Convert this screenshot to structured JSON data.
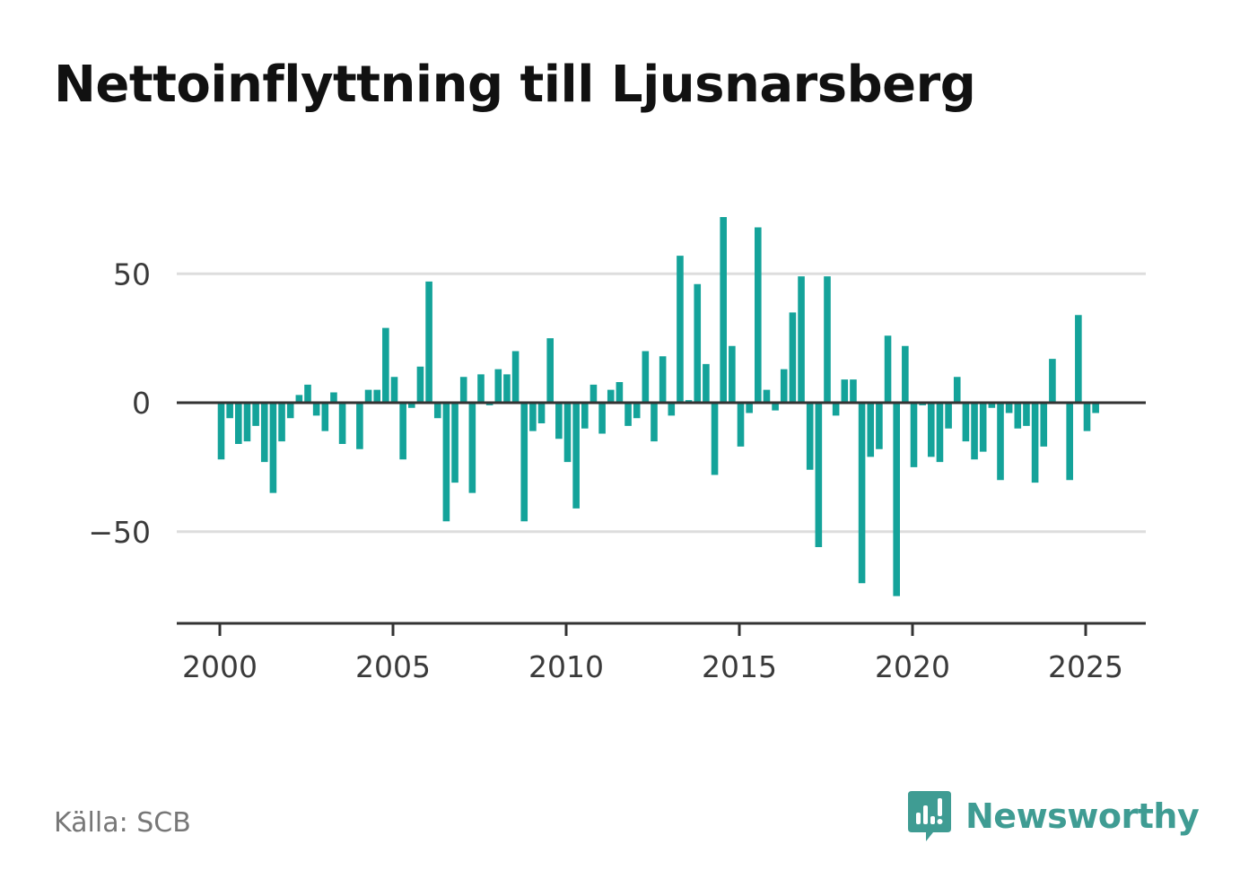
{
  "title": "Nettoinflyttning till Ljusnarsberg",
  "source": "Källa: SCB",
  "brand": {
    "name": "Newsworthy",
    "icon": "newsworthy-logo-icon",
    "color": "#3f9c93"
  },
  "colors": {
    "bar": "#14a39a",
    "grid": "#dddddd",
    "axis": "#333333"
  },
  "chart_data": {
    "type": "bar",
    "title": "Nettoinflyttning till Ljusnarsberg",
    "xlabel": "",
    "ylabel": "",
    "x_ticks": [
      2000,
      2005,
      2010,
      2015,
      2020,
      2025
    ],
    "x_tick_labels": [
      "2000",
      "2005",
      "2010",
      "2015",
      "2020",
      "2025"
    ],
    "y_ticks": [
      50,
      0,
      -50
    ],
    "y_tick_labels": [
      "50",
      "0",
      "−50"
    ],
    "ylim": [
      -86,
      72
    ],
    "xlim": [
      1998.8,
      2026.8
    ],
    "grid": true,
    "legend": "none",
    "series": [
      {
        "x": [
          2000.0,
          2000.25,
          2000.5,
          2000.75,
          2001.0,
          2001.25,
          2001.5,
          2001.75,
          2002.0,
          2002.25,
          2002.5,
          2002.75,
          2003.0,
          2003.25,
          2003.5,
          2003.75,
          2004.0,
          2004.25,
          2004.5,
          2004.75,
          2005.0,
          2005.25,
          2005.5,
          2005.75,
          2006.0,
          2006.25,
          2006.5,
          2006.75,
          2007.0,
          2007.25,
          2007.5,
          2007.75,
          2008.0,
          2008.25,
          2008.5,
          2008.75,
          2009.0,
          2009.25,
          2009.5,
          2009.75,
          2010.0,
          2010.25,
          2010.5,
          2010.75,
          2011.0,
          2011.25,
          2011.5,
          2011.75,
          2012.0,
          2012.25,
          2012.5,
          2012.75,
          2013.0,
          2013.25,
          2013.5,
          2013.75,
          2014.0,
          2014.25,
          2014.5,
          2014.75,
          2015.0,
          2015.25,
          2015.5,
          2015.75,
          2016.0,
          2016.25,
          2016.5,
          2016.75,
          2017.0,
          2017.25,
          2017.5,
          2017.75,
          2018.0,
          2018.25,
          2018.5,
          2018.75,
          2019.0,
          2019.25,
          2019.5,
          2019.75,
          2020.0,
          2020.25,
          2020.5,
          2020.75,
          2021.0,
          2021.25,
          2021.5,
          2021.75,
          2022.0,
          2022.25,
          2022.5,
          2022.75,
          2023.0,
          2023.25,
          2023.5,
          2023.75,
          2024.0,
          2024.25,
          2024.5,
          2024.75,
          2025.0,
          2025.25
        ],
        "values": [
          -22,
          -6,
          -16,
          -15,
          -9,
          -23,
          -35,
          -15,
          -6,
          3,
          7,
          -5,
          -11,
          4,
          -16,
          0,
          -18,
          5,
          5,
          29,
          10,
          -22,
          -2,
          14,
          47,
          -6,
          -46,
          -31,
          10,
          -35,
          11,
          -1,
          13,
          11,
          20,
          -46,
          -11,
          -8,
          25,
          -14,
          -23,
          -41,
          -10,
          7,
          -12,
          5,
          8,
          -9,
          -6,
          20,
          -15,
          18,
          -5,
          57,
          1,
          46,
          15,
          -28,
          72,
          22,
          -17,
          -4,
          68,
          5,
          -3,
          13,
          35,
          49,
          -26,
          -56,
          49,
          -5,
          9,
          9,
          -70,
          -21,
          -18,
          26,
          -75,
          22,
          -25,
          -1,
          -21,
          -23,
          -10,
          10,
          -15,
          -22,
          -19,
          -2,
          -30,
          -4,
          -10,
          -9,
          -31,
          -17,
          17,
          0,
          -30,
          34,
          -11,
          -4
        ]
      }
    ]
  }
}
